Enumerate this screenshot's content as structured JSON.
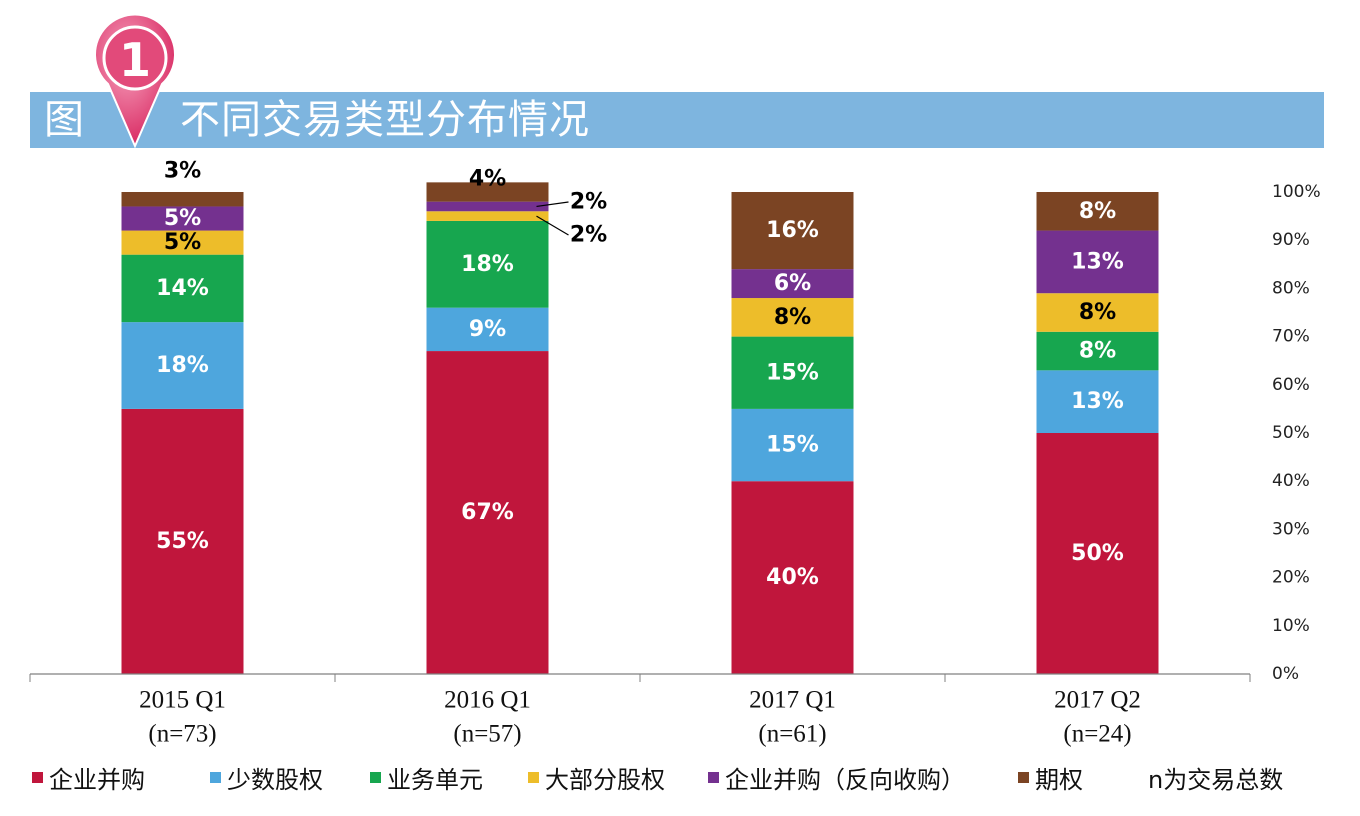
{
  "title": {
    "prefix": "图",
    "badge_number": "1",
    "text": "不同交易类型分布情况"
  },
  "colors": {
    "title_band": "#7eb5df",
    "badge": "#e23a72"
  },
  "legend_note": "n为交易总数",
  "chart_data": {
    "type": "bar",
    "stacked": true,
    "percent": true,
    "categories": [
      "2015 Q1",
      "2016 Q1",
      "2017 Q1",
      "2017 Q2"
    ],
    "category_counts": [
      "(n=73)",
      "(n=57)",
      "(n=61)",
      "(n=24)"
    ],
    "series": [
      {
        "name": "企业并购",
        "color": "#c0163c",
        "values": [
          55,
          67,
          40,
          50
        ],
        "labels": [
          "55%",
          "67%",
          "40%",
          "50%"
        ],
        "label_color": "#ffffff"
      },
      {
        "name": "少数股权",
        "color": "#4ea6dd",
        "values": [
          18,
          9,
          15,
          13
        ],
        "labels": [
          "18%",
          "9%",
          "15%",
          "13%"
        ],
        "label_color": "#ffffff"
      },
      {
        "name": "业务单元",
        "color": "#17a64f",
        "values": [
          14,
          18,
          15,
          8
        ],
        "labels": [
          "14%",
          "18%",
          "15%",
          "8%"
        ],
        "label_color": "#ffffff"
      },
      {
        "name": "大部分股权",
        "color": "#edbd2a",
        "values": [
          5,
          2,
          8,
          8
        ],
        "labels": [
          "5%",
          "2%",
          "8%",
          "8%"
        ],
        "label_color": "#000000"
      },
      {
        "name": "企业并购（反向收购）",
        "color": "#74318f",
        "values": [
          5,
          2,
          6,
          13
        ],
        "labels": [
          "5%",
          "2%",
          "6%",
          "13%"
        ],
        "label_color": "#ffffff"
      },
      {
        "name": "期权",
        "color": "#7b4423",
        "values": [
          3,
          4,
          16,
          8
        ],
        "labels": [
          "3%",
          "4%",
          "16%",
          "8%"
        ],
        "label_color": "#ffffff"
      }
    ],
    "y_ticks": [
      "0%",
      "10%",
      "20%",
      "30%",
      "40%",
      "50%",
      "60%",
      "70%",
      "80%",
      "90%",
      "100%"
    ],
    "ylim": [
      0,
      100
    ],
    "y_axis_side": "right",
    "grid": false,
    "legend_position": "bottom"
  }
}
